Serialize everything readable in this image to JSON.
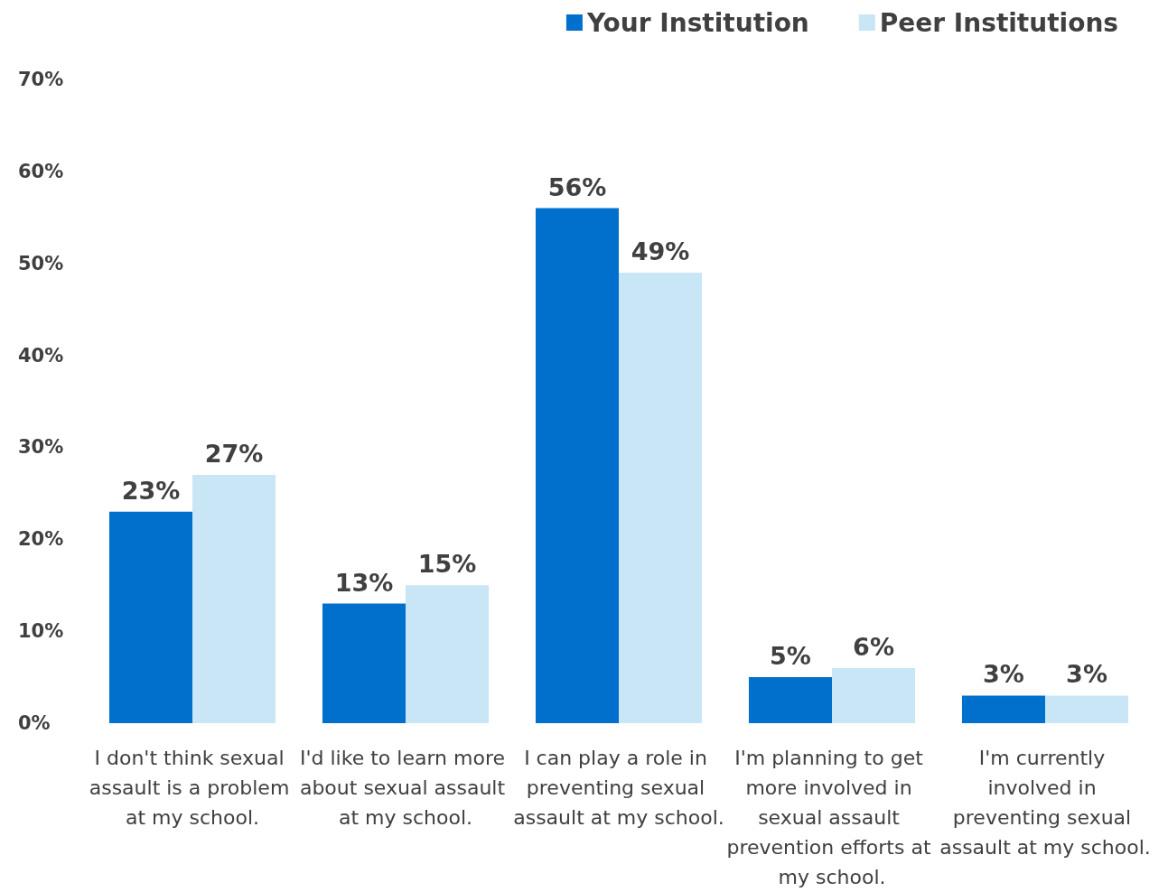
{
  "chart_data": {
    "type": "bar",
    "categories": [
      "I don't think sexual assault is a problem at my school.",
      "I'd like to learn more about sexual assault at my school.",
      "I can play a role in preventing sexual assault at my school.",
      "I'm planning to get more involved in sexual assault prevention efforts at my school.",
      "I'm currently involved in preventing sexual assault at my school."
    ],
    "series": [
      {
        "name": "Your Institution",
        "color": "#0070cd",
        "values": [
          23,
          13,
          56,
          5,
          3
        ],
        "value_labels": [
          "23%",
          "13%",
          "56%",
          "5%",
          "3%"
        ]
      },
      {
        "name": "Peer Institutions",
        "color": "#c9e6f7",
        "values": [
          27,
          15,
          49,
          6,
          3
        ],
        "value_labels": [
          "27%",
          "15%",
          "49%",
          "6%",
          "3%"
        ]
      }
    ],
    "ylim": [
      0,
      70
    ],
    "yticks": [
      {
        "value": 0,
        "label": "0%"
      },
      {
        "value": 10,
        "label": "10%"
      },
      {
        "value": 20,
        "label": "20%"
      },
      {
        "value": 30,
        "label": "30%"
      },
      {
        "value": 40,
        "label": "40%"
      },
      {
        "value": 50,
        "label": "50%"
      },
      {
        "value": 60,
        "label": "60%"
      },
      {
        "value": 70,
        "label": "70%"
      }
    ],
    "grid": false,
    "legend": "top right"
  }
}
